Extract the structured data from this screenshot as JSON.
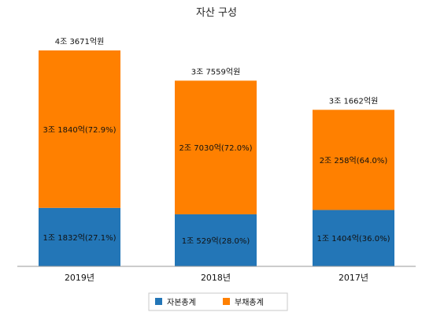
{
  "chart_data": {
    "type": "bar",
    "stacked": true,
    "title": "자산 구성",
    "categories": [
      "2019년",
      "2018년",
      "2017년"
    ],
    "totals": [
      43671,
      37559,
      31662
    ],
    "total_labels": [
      "4조 3671억원",
      "3조 7559억원",
      "3조 1662억원"
    ],
    "series": [
      {
        "name": "자본총계",
        "color": "#2376b7",
        "values": [
          11832,
          10529,
          11404
        ],
        "labels": [
          "1조 1832억(27.1%)",
          "1조 529억(28.0%)",
          "1조 1404억(36.0%)"
        ]
      },
      {
        "name": "부채총계",
        "color": "#ff8000",
        "values": [
          31840,
          27030,
          20258
        ],
        "labels": [
          "3조 1840억(72.9%)",
          "2조 7030억(72.0%)",
          "2조 258억(64.0%)"
        ]
      }
    ],
    "ylim": [
      0,
      43671
    ],
    "grid": false,
    "legend_position": "bottom"
  }
}
